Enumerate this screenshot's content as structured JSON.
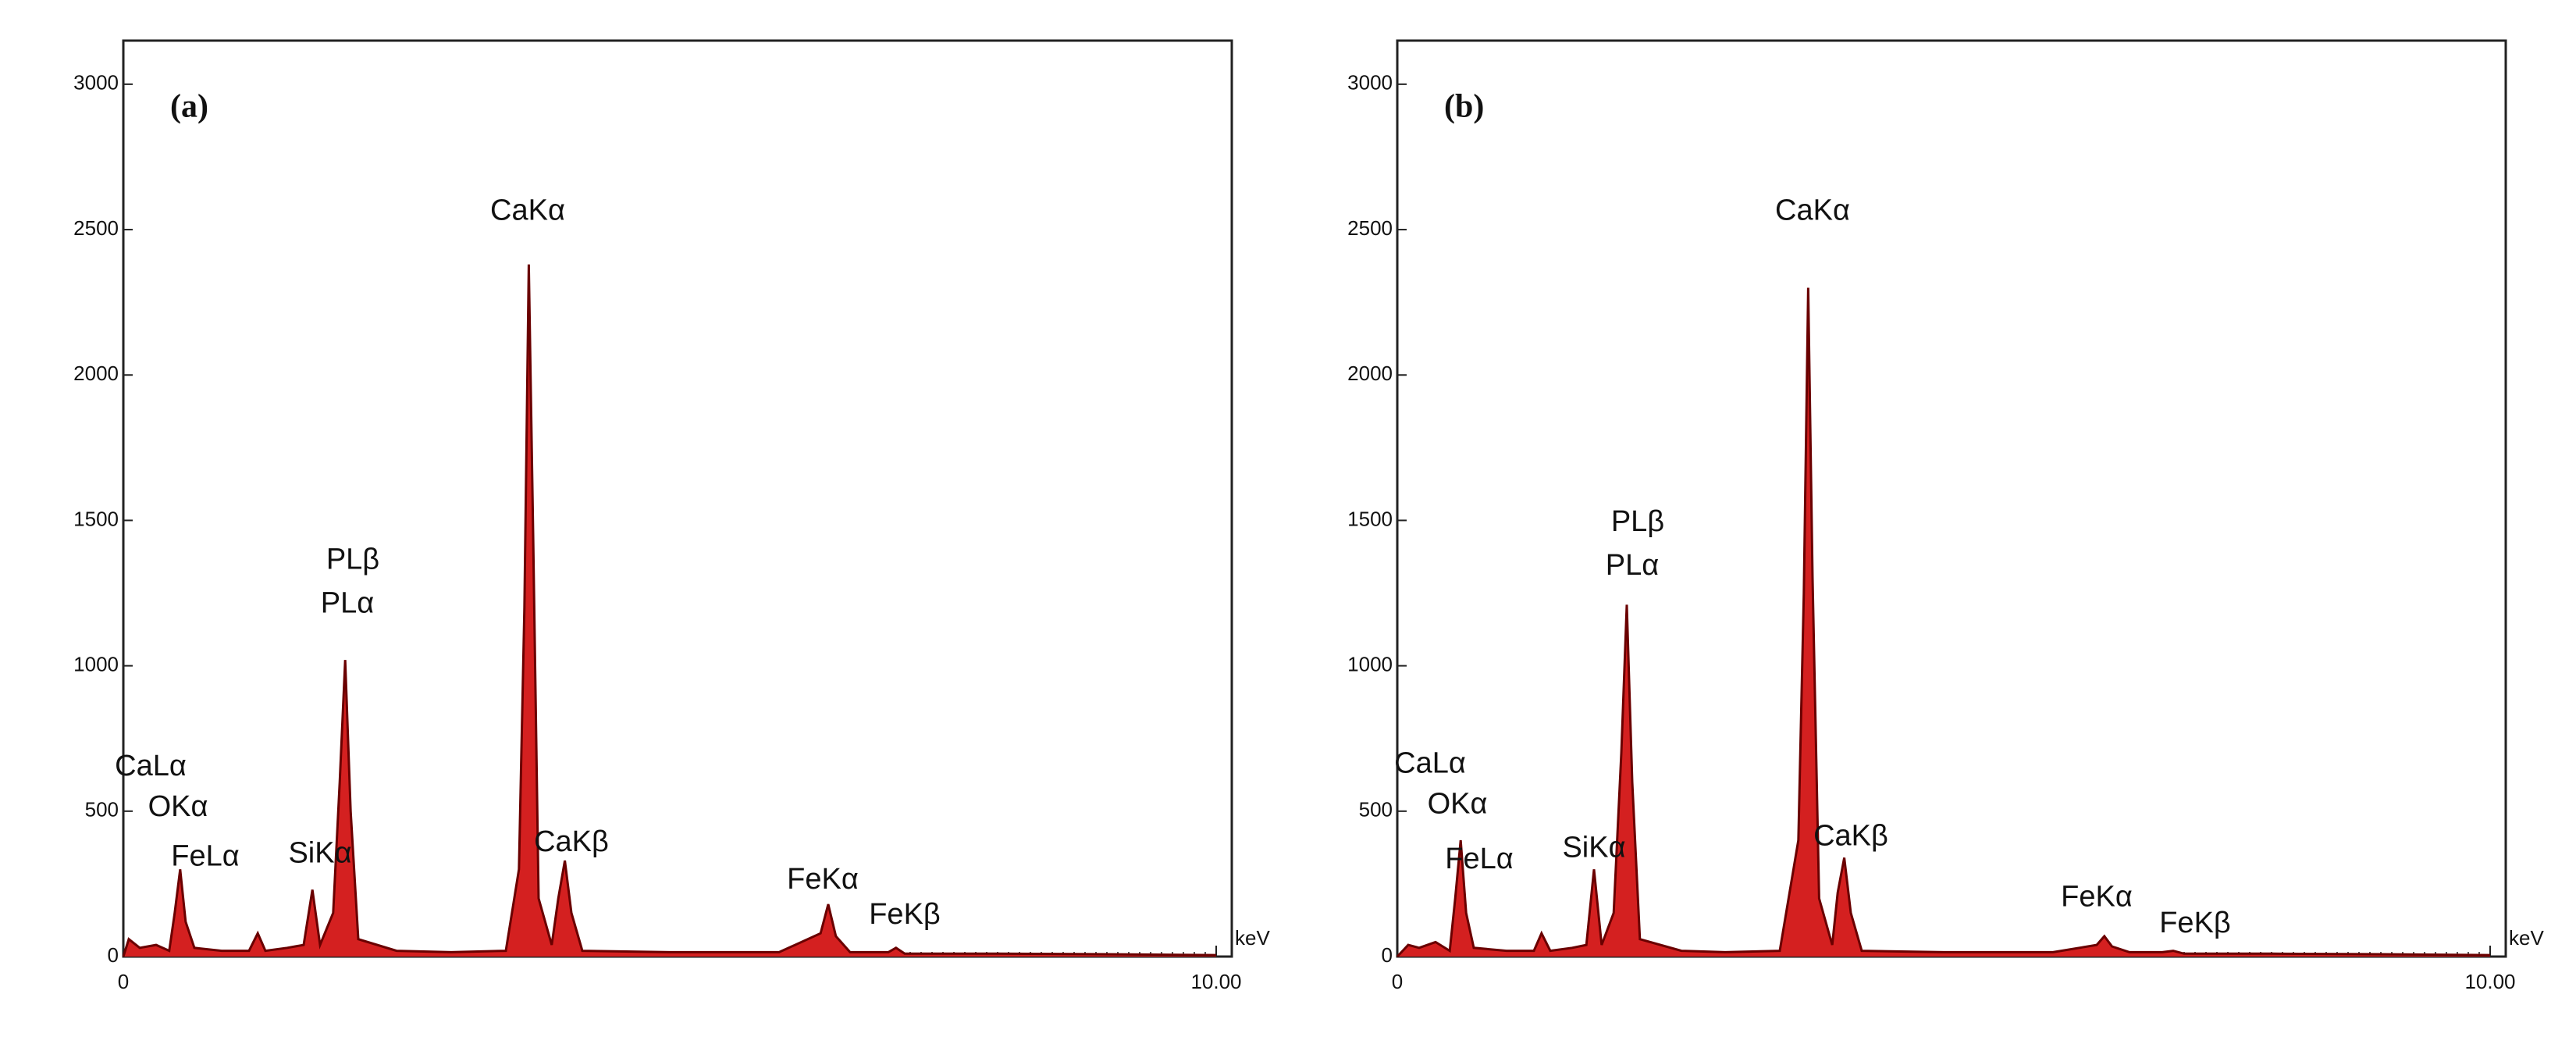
{
  "chart_data": [
    {
      "type": "line",
      "title": "(a)",
      "x_label": "keV",
      "xlim": [
        0,
        10
      ],
      "ylim": [
        0,
        3150
      ],
      "xticks": [
        0,
        {
          "value": 10,
          "label": "10.00"
        }
      ],
      "yticks": [
        0,
        500,
        1000,
        1500,
        2000,
        2500,
        3000
      ],
      "x": [
        0,
        0.05,
        0.15,
        0.3,
        0.42,
        0.47,
        0.52,
        0.57,
        0.65,
        0.9,
        1.15,
        1.23,
        1.3,
        1.5,
        1.65,
        1.73,
        1.8,
        1.92,
        1.98,
        2.03,
        2.08,
        2.15,
        2.5,
        3.0,
        3.5,
        3.62,
        3.67,
        3.71,
        3.75,
        3.8,
        3.92,
        3.98,
        4.04,
        4.1,
        4.2,
        5.0,
        6.0,
        6.38,
        6.45,
        6.52,
        6.65,
        7.0,
        7.07,
        7.15,
        8,
        9,
        10
      ],
      "series": [
        {
          "color": "#d42020",
          "line_color": "#6a0000",
          "values": [
            0,
            60,
            30,
            40,
            20,
            150,
            300,
            120,
            30,
            20,
            20,
            80,
            20,
            30,
            40,
            230,
            40,
            150,
            600,
            1020,
            500,
            60,
            20,
            15,
            20,
            300,
            1200,
            2380,
            1450,
            200,
            40,
            200,
            330,
            150,
            20,
            15,
            15,
            80,
            180,
            70,
            15,
            15,
            30,
            10,
            10,
            8,
            5
          ]
        }
      ],
      "annotations": [
        {
          "text": "CaKα",
          "x": 3.7,
          "y": 2560
        },
        {
          "text": "PLβ",
          "x": 2.1,
          "y": 1360
        },
        {
          "text": "PLα",
          "x": 2.05,
          "y": 1210
        },
        {
          "text": "CaLα",
          "x": 0.25,
          "y": 650
        },
        {
          "text": "OKα",
          "x": 0.5,
          "y": 510
        },
        {
          "text": "FeLα",
          "x": 0.75,
          "y": 340
        },
        {
          "text": "SiKα",
          "x": 1.8,
          "y": 350
        },
        {
          "text": "CaKβ",
          "x": 4.1,
          "y": 390
        },
        {
          "text": "FeKα",
          "x": 6.4,
          "y": 260
        },
        {
          "text": "FeKβ",
          "x": 7.15,
          "y": 140
        }
      ]
    },
    {
      "type": "line",
      "title": "(b)",
      "x_label": "keV",
      "xlim": [
        0,
        10
      ],
      "ylim": [
        0,
        3150
      ],
      "xticks": [
        0,
        {
          "value": 10,
          "label": "10.00"
        }
      ],
      "yticks": [
        0,
        500,
        1000,
        1500,
        2000,
        2500,
        3000
      ],
      "x": [
        0,
        0.1,
        0.2,
        0.35,
        0.48,
        0.53,
        0.58,
        0.63,
        0.7,
        1.0,
        1.25,
        1.32,
        1.4,
        1.6,
        1.73,
        1.8,
        1.87,
        1.98,
        2.05,
        2.1,
        2.15,
        2.22,
        2.6,
        3.0,
        3.5,
        3.67,
        3.72,
        3.76,
        3.8,
        3.86,
        3.98,
        4.03,
        4.09,
        4.15,
        4.25,
        5.0,
        6.0,
        6.4,
        6.47,
        6.54,
        6.7,
        7.0,
        7.1,
        7.2,
        8,
        9,
        10
      ],
      "series": [
        {
          "color": "#d42020",
          "line_color": "#6a0000",
          "values": [
            0,
            40,
            30,
            50,
            20,
            200,
            400,
            150,
            30,
            20,
            20,
            80,
            20,
            30,
            40,
            300,
            40,
            150,
            700,
            1210,
            600,
            60,
            20,
            15,
            20,
            400,
            1250,
            2300,
            1300,
            200,
            40,
            220,
            340,
            150,
            20,
            15,
            15,
            40,
            70,
            35,
            15,
            15,
            20,
            10,
            10,
            8,
            5
          ]
        }
      ],
      "annotations": [
        {
          "text": "CaKα",
          "x": 3.8,
          "y": 2560
        },
        {
          "text": "PLβ",
          "x": 2.2,
          "y": 1490
        },
        {
          "text": "PLα",
          "x": 2.15,
          "y": 1340
        },
        {
          "text": "CaLα",
          "x": 0.3,
          "y": 660
        },
        {
          "text": "OKα",
          "x": 0.55,
          "y": 520
        },
        {
          "text": "FeLα",
          "x": 0.75,
          "y": 330
        },
        {
          "text": "SiKα",
          "x": 1.8,
          "y": 370
        },
        {
          "text": "CaKβ",
          "x": 4.15,
          "y": 410
        },
        {
          "text": "FeKα",
          "x": 6.4,
          "y": 200
        },
        {
          "text": "FeKβ",
          "x": 7.3,
          "y": 110
        }
      ]
    }
  ]
}
